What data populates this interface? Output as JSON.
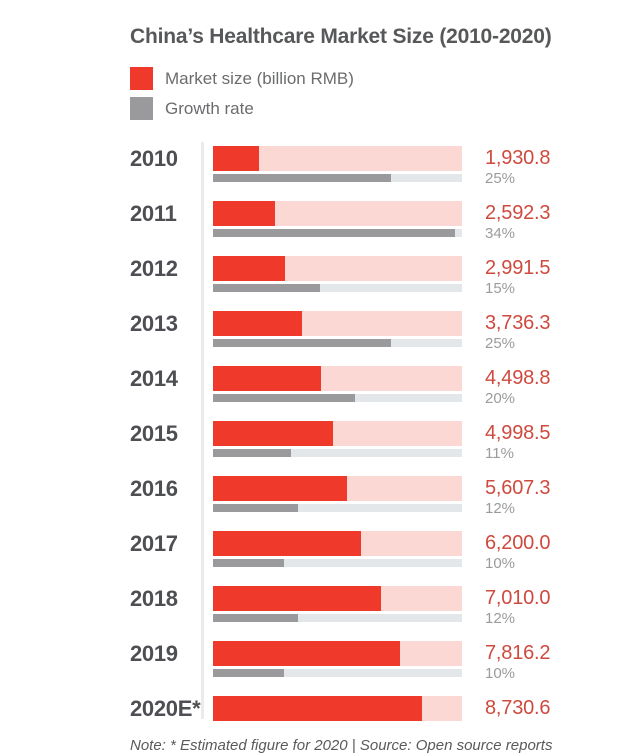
{
  "title": "China’s Healthcare Market Size (2010-2020)",
  "legend": [
    {
      "label": "Market size (billion RMB)",
      "color": "#ee392b"
    },
    {
      "label": "Growth rate",
      "color": "#9a9a9c"
    }
  ],
  "footnote": "Note: * Estimated figure for 2020  | Source: Open source reports",
  "colors": {
    "bar_red": "#ee392b",
    "bar_red_track": "#fbd8d3",
    "bar_gray": "#9a9a9c",
    "bar_gray_track": "#e4e7e9",
    "value_text": "#cf4a3e",
    "pct_text": "#9b9b9b",
    "year_text": "#4e4f53",
    "title_text": "#57585a",
    "axis_line": "#eceaea"
  },
  "chart_data": {
    "type": "bar",
    "orientation": "horizontal",
    "title": "China’s Healthcare Market Size (2010-2020)",
    "categories": [
      "2010",
      "2011",
      "2012",
      "2013",
      "2014",
      "2015",
      "2016",
      "2017",
      "2018",
      "2019",
      "2020E*"
    ],
    "series": [
      {
        "name": "Market size (billion RMB)",
        "values": [
          1930.8,
          2592.3,
          2991.5,
          3736.3,
          4498.8,
          4998.5,
          5607.3,
          6200.0,
          7010.0,
          7816.2,
          8730.6
        ]
      },
      {
        "name": "Growth rate (%)",
        "values": [
          25,
          34,
          15,
          25,
          20,
          11,
          12,
          10,
          12,
          10,
          null
        ]
      }
    ],
    "market_axis_max": 10400,
    "growth_axis_max": 35,
    "legend_position": "top-left",
    "grid": false,
    "rows": [
      {
        "year": "2010",
        "value_label": "1,930.8",
        "market": 1930.8,
        "growth_label": "25%",
        "growth": 25
      },
      {
        "year": "2011",
        "value_label": "2,592.3",
        "market": 2592.3,
        "growth_label": "34%",
        "growth": 34
      },
      {
        "year": "2012",
        "value_label": "2,991.5",
        "market": 2991.5,
        "growth_label": "15%",
        "growth": 15
      },
      {
        "year": "2013",
        "value_label": "3,736.3",
        "market": 3736.3,
        "growth_label": "25%",
        "growth": 25
      },
      {
        "year": "2014",
        "value_label": "4,498.8",
        "market": 4498.8,
        "growth_label": "20%",
        "growth": 20
      },
      {
        "year": "2015",
        "value_label": "4,998.5",
        "market": 4998.5,
        "growth_label": "11%",
        "growth": 11
      },
      {
        "year": "2016",
        "value_label": "5,607.3",
        "market": 5607.3,
        "growth_label": "12%",
        "growth": 12
      },
      {
        "year": "2017",
        "value_label": "6,200.0",
        "market": 6200.0,
        "growth_label": "10%",
        "growth": 10
      },
      {
        "year": "2018",
        "value_label": "7,010.0",
        "market": 7010.0,
        "growth_label": "12%",
        "growth": 12
      },
      {
        "year": "2019",
        "value_label": "7,816.2",
        "market": 7816.2,
        "growth_label": "10%",
        "growth": 10
      },
      {
        "year": "2020E*",
        "value_label": "8,730.6",
        "market": 8730.6,
        "growth_label": null,
        "growth": null
      }
    ]
  }
}
